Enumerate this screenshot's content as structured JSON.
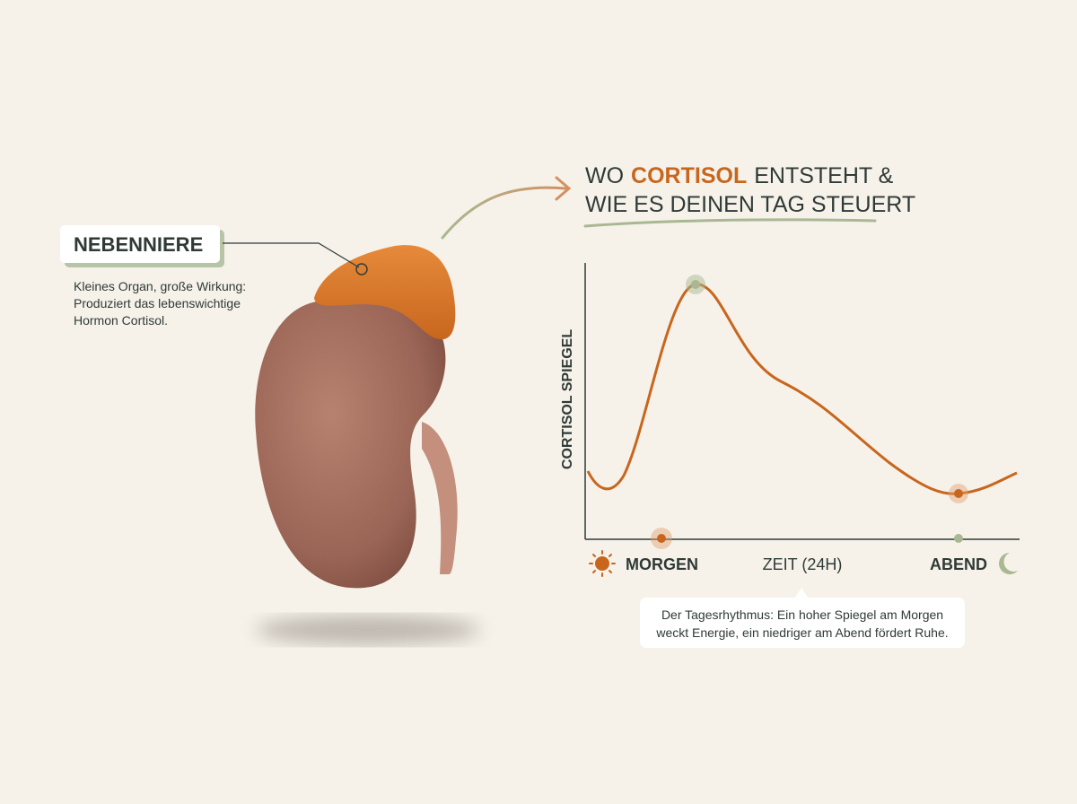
{
  "label": {
    "title": "NEBENNIERE",
    "description": [
      "Kleines Organ, große Wirkung:",
      "Produziert das lebenswichtige",
      "Hormon Cortisol."
    ]
  },
  "headline": {
    "line1": [
      "WO",
      "CORTISOL",
      "ENTSTEHT &"
    ],
    "line2": "WIE ES DEINEN TAG STEUERT"
  },
  "chart": {
    "y_label": "CORTISOL SPIEGEL",
    "x_labels": [
      "MORGEN",
      "ZEIT (24H)",
      "ABEND"
    ]
  },
  "callout": [
    "Der Tagesrhythmus: Ein hoher Spiegel am Morgen",
    "weckt Energie, ein niedriger am Abend fördert Ruhe."
  ]
}
